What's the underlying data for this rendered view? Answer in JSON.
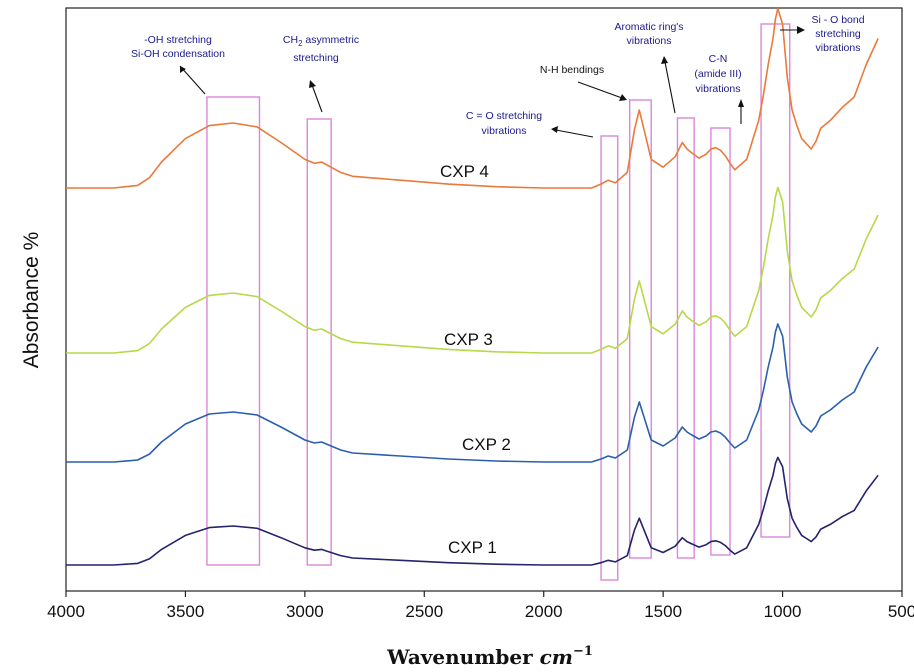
{
  "chart_data": {
    "type": "line",
    "xlabel_main": "Wavenumber",
    "xlabel_unit": "cm",
    "xlabel_exp": "−1",
    "ylabel": "Absorbance %",
    "xlim": [
      4000,
      500
    ],
    "x_reversed": true,
    "x_ticks": [
      "4000",
      "3500",
      "3000",
      "2500",
      "2000",
      "1500",
      "1000",
      "500"
    ],
    "grid": false,
    "x_sample": [
      4000,
      3800,
      3700,
      3650,
      3600,
      3500,
      3400,
      3300,
      3200,
      3100,
      3000,
      2960,
      2930,
      2900,
      2850,
      2800,
      2600,
      2400,
      2200,
      2000,
      1800,
      1760,
      1730,
      1700,
      1650,
      1620,
      1600,
      1580,
      1550,
      1500,
      1450,
      1420,
      1400,
      1380,
      1350,
      1320,
      1300,
      1280,
      1260,
      1240,
      1220,
      1200,
      1150,
      1100,
      1080,
      1060,
      1040,
      1030,
      1020,
      1000,
      980,
      960,
      940,
      920,
      900,
      880,
      860,
      840,
      800,
      750,
      700,
      650,
      600
    ],
    "series": [
      {
        "name": "CXP 4",
        "color": "#e97a3c",
        "y": [
          0.1,
          0.1,
          0.12,
          0.18,
          0.3,
          0.48,
          0.58,
          0.6,
          0.57,
          0.45,
          0.32,
          0.29,
          0.3,
          0.27,
          0.22,
          0.19,
          0.16,
          0.13,
          0.11,
          0.1,
          0.1,
          0.13,
          0.16,
          0.14,
          0.22,
          0.55,
          0.7,
          0.55,
          0.32,
          0.26,
          0.34,
          0.45,
          0.4,
          0.37,
          0.33,
          0.36,
          0.4,
          0.41,
          0.39,
          0.35,
          0.29,
          0.24,
          0.32,
          0.62,
          0.82,
          1.05,
          1.25,
          1.4,
          1.48,
          1.36,
          0.95,
          0.7,
          0.58,
          0.48,
          0.44,
          0.4,
          0.46,
          0.56,
          0.62,
          0.72,
          0.8,
          1.05,
          1.25
        ]
      },
      {
        "name": "CXP 3",
        "color": "#b6d94a",
        "y": [
          0.1,
          0.1,
          0.12,
          0.18,
          0.3,
          0.48,
          0.58,
          0.6,
          0.57,
          0.45,
          0.32,
          0.29,
          0.3,
          0.27,
          0.22,
          0.19,
          0.16,
          0.13,
          0.11,
          0.1,
          0.1,
          0.13,
          0.16,
          0.14,
          0.22,
          0.55,
          0.7,
          0.55,
          0.32,
          0.26,
          0.34,
          0.45,
          0.4,
          0.37,
          0.33,
          0.36,
          0.4,
          0.41,
          0.39,
          0.35,
          0.29,
          0.24,
          0.32,
          0.62,
          0.82,
          1.05,
          1.25,
          1.4,
          1.48,
          1.36,
          0.95,
          0.7,
          0.58,
          0.48,
          0.44,
          0.4,
          0.46,
          0.56,
          0.62,
          0.72,
          0.8,
          1.05,
          1.25
        ]
      },
      {
        "name": "CXP 2",
        "color": "#2b5fad",
        "y": [
          0.1,
          0.1,
          0.12,
          0.18,
          0.3,
          0.48,
          0.58,
          0.6,
          0.57,
          0.45,
          0.32,
          0.29,
          0.3,
          0.27,
          0.22,
          0.19,
          0.16,
          0.13,
          0.11,
          0.1,
          0.1,
          0.13,
          0.16,
          0.14,
          0.22,
          0.55,
          0.7,
          0.55,
          0.32,
          0.26,
          0.34,
          0.45,
          0.4,
          0.37,
          0.33,
          0.36,
          0.4,
          0.41,
          0.39,
          0.35,
          0.29,
          0.24,
          0.32,
          0.62,
          0.82,
          1.05,
          1.25,
          1.4,
          1.48,
          1.36,
          0.95,
          0.7,
          0.58,
          0.48,
          0.44,
          0.4,
          0.46,
          0.56,
          0.62,
          0.72,
          0.8,
          1.05,
          1.25
        ]
      },
      {
        "name": "CXP 1",
        "color": "#23236e",
        "y": [
          0.1,
          0.1,
          0.12,
          0.18,
          0.3,
          0.48,
          0.58,
          0.6,
          0.57,
          0.45,
          0.32,
          0.29,
          0.3,
          0.27,
          0.22,
          0.19,
          0.16,
          0.13,
          0.11,
          0.1,
          0.1,
          0.13,
          0.16,
          0.14,
          0.22,
          0.55,
          0.7,
          0.55,
          0.32,
          0.26,
          0.34,
          0.45,
          0.4,
          0.37,
          0.33,
          0.36,
          0.4,
          0.41,
          0.39,
          0.35,
          0.29,
          0.24,
          0.32,
          0.62,
          0.82,
          1.05,
          1.25,
          1.4,
          1.48,
          1.36,
          0.95,
          0.7,
          0.58,
          0.48,
          0.44,
          0.4,
          0.46,
          0.56,
          0.62,
          0.72,
          0.8,
          1.05,
          1.25
        ]
      }
    ],
    "series_labels": [
      "CXP 4",
      "CXP 3",
      "CXP 2",
      "CXP 1"
    ],
    "bands": [
      {
        "x1": 3410,
        "x2": 3190
      },
      {
        "x1": 2990,
        "x2": 2890
      },
      {
        "x1": 1760,
        "x2": 1690
      },
      {
        "x1": 1640,
        "x2": 1550
      },
      {
        "x1": 1440,
        "x2": 1370
      },
      {
        "x1": 1300,
        "x2": 1220
      },
      {
        "x1": 1090,
        "x2": 970
      }
    ],
    "annotations": {
      "oh_line1": "-OH stretching",
      "oh_line2": "Si-OH condensation",
      "ch2_main": "CH",
      "ch2_sub": "2",
      "ch2_rest": " asymmetric",
      "ch2_line2": "stretching",
      "co_line1": "C = O stretching",
      "co_line2": "vibrations",
      "nh": "N-H bendings",
      "arom_line1": "Aromatic ring's",
      "arom_line2": "vibrations",
      "cn_line1": "C-N",
      "cn_line2": "(amide III)",
      "cn_line3": "vibrations",
      "sio_line1": "Si - O bond",
      "sio_line2": "stretching",
      "sio_line3": "vibrations"
    }
  }
}
